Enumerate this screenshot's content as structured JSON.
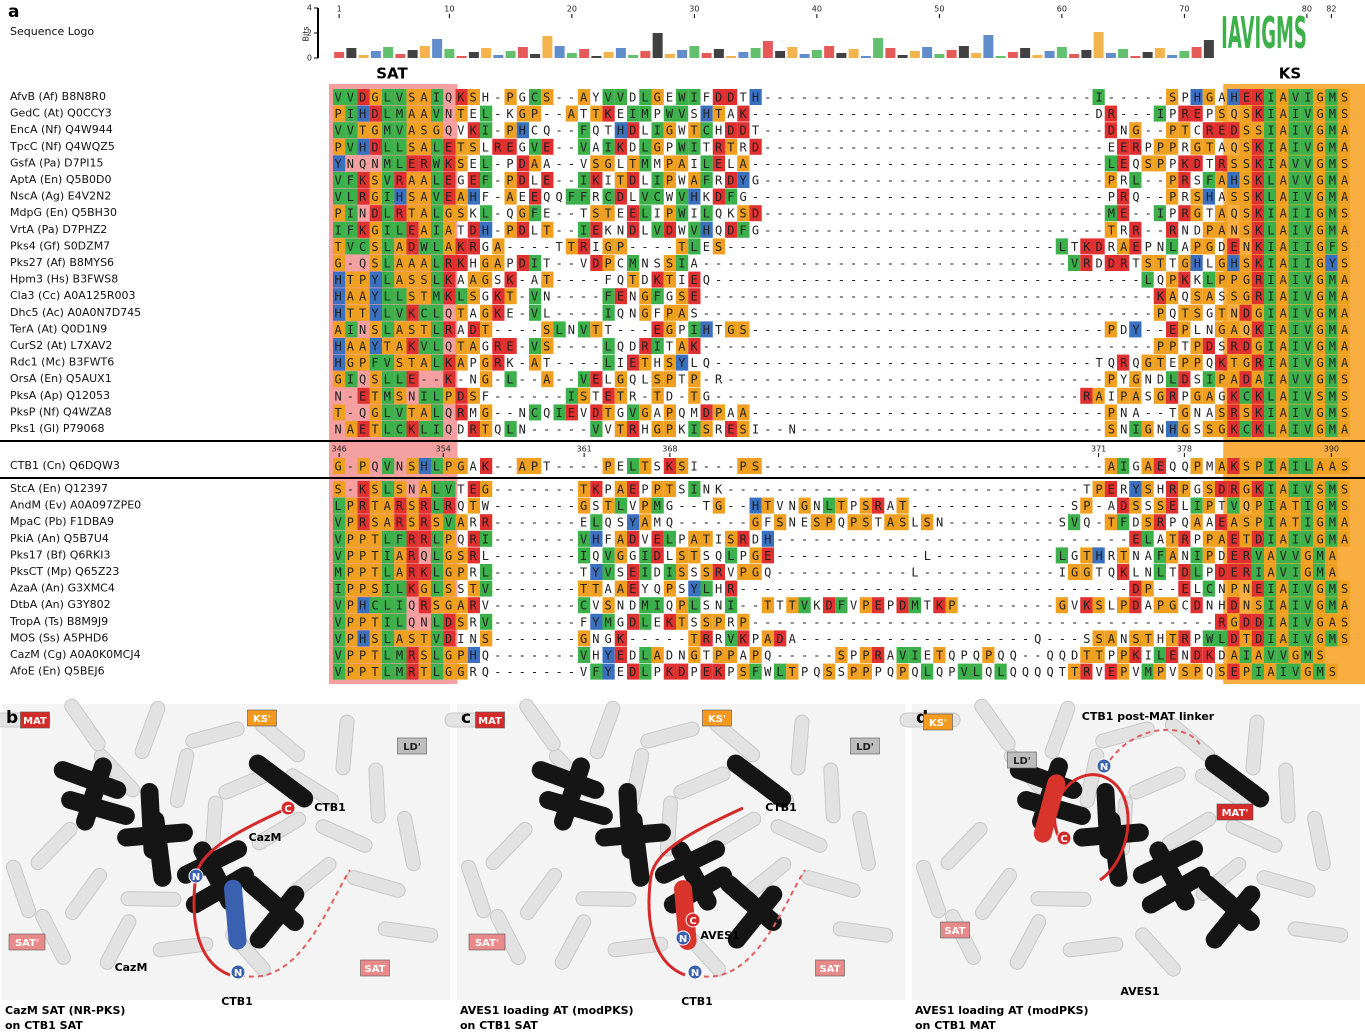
{
  "panel_a": {
    "label": "a",
    "logo_title": "Sequence Logo",
    "logo_axis_label": "Bits",
    "logo_yticks": [
      4,
      2,
      0
    ],
    "logo_consensus": "IAVIGMS",
    "position_ticks": [
      1,
      10,
      20,
      30,
      40,
      50,
      60,
      70,
      80,
      82
    ],
    "domains": [
      "SAT",
      "KS"
    ],
    "groups": [
      {
        "rows": [
          {
            "name": "AfvB (Af) B8N8R0",
            "sequence": "VVDGLVSAIQKSH-PGCS--AYVVDLGEWIFDDTH---------------------------I-----SPHGAHEKIAVIGMS"
          },
          {
            "name": "GedC (At) Q0CCY3",
            "sequence": "PIHDLMAAVNTEL-KGP--ATTKEIMPWVSHTAK----------------------------DR---IPREPSQSKIAIVGMS"
          },
          {
            "name": "EncA (Nf) Q4W944",
            "sequence": "VVTGMVASGQVKI-PHCQ--FQTHDLIGWTCHDDT----------------------------DNG--PTCREDSSIAIVGMA"
          },
          {
            "name": "TpcC (Nf) Q4WQZ5",
            "sequence": "PVHDLLSALETSLREGVE--VAIKDLGPWITRTRD----------------------------EERPPPRGTAQSKIAIVGMA"
          },
          {
            "name": "GsfA (Pa) D7PI15",
            "sequence": "YNQNMLERWKSEL-PDAA--VSGLTMMPAILELA-----------------------------LEQSPPKDTRSSKIAVVGMS"
          },
          {
            "name": "AptA (En) Q5B0D0",
            "sequence": "VFKSVRAALEGEF-PDLE--IKITDLIPWAFRDYG----------------------------PRL--PRSFAHSKLAVVGMA"
          },
          {
            "name": "NscA (Ag) E4V2N2",
            "sequence": "VLRGIHSAVEAHF-AEEQQFFRCDLVCWVHKDFG-----------------------------PRQ--PRSHASSKLAIVGMA"
          },
          {
            "name": "MdpG (En) Q5BH30",
            "sequence": "PINDLRTALGSKL-QGFE--TSTEELIPWILQKSD----------------------------ME--IPRGTAQSKIAIIGMS"
          },
          {
            "name": "VrtA (Pa) D7PHZ2",
            "sequence": "IFKGILEAIATDH-PDLT--IEKNDLVDWVHQDFG----------------------------TRR--RNDPANSKLAIVGMA"
          },
          {
            "name": "Pks4 (Gf) S0DZM7",
            "sequence": "TVCSLADWLAKRGA----TTRIGP----TLES---------------------------LTKDRAEPNLAPGDENKIAIIGFS"
          },
          {
            "name": "Pks27 (Af) B8MYS6",
            "sequence": "G-QSLAAALRKHGAPDIT--VDPCMNSSIA------------------------------VRDDRTSTTGHLGHSKIAIIGYS"
          },
          {
            "name": "Hpm3 (Hs) B3FWS8",
            "sequence": "HTPYLASSLKAAGSK-AT----FQTDKTIEQ-----------------------------------LQPKKLPPGRIAIVGMA"
          },
          {
            "name": "Cla3 (Cc) A0A125R003",
            "sequence": "HAAYLLSTMKLSGKT-VN----FENGFGSE-------------------------------------KAQSASSGRIAIVGMA"
          },
          {
            "name": "Dhc5 (Ac) A0A0N7D745",
            "sequence": "HTTYLVKCLQTAGKE-VL----IQNGFPAS-------------------------------------PQTSGTNDGIAIVGMA"
          },
          {
            "name": "TerA (At) Q0D1N9",
            "sequence": "AINSLASTLRADT----SLNVTT---EGPIHTGS-----------------------------PDY--EPLNGAQKIAIVGMA"
          },
          {
            "name": "CurS2 (At) L7XAV2",
            "sequence": "HAAYTAKVLQTAGRE-VS----LQDRITAK-------------------------------------PPTPDSRDGIAIVGMA"
          },
          {
            "name": "Rdc1 (Mc) B3FWT6",
            "sequence": "HGPFVSTALKAPGRK-AT----LIETHSYLQ-------------------------------TQRQGTEPPQKTGRIAIVGMA"
          },
          {
            "name": "OrsA (En) Q5AUX1",
            "sequence": "GIQSLLE--K-NG-L--A--VELGQLSPTP-R-------------------------------PYGNDLDSIPADAIAVVGMS"
          },
          {
            "name": "PksA (Ap) Q12053",
            "sequence": "N-ETMSNILPDSF------ISTETR-TD-TG------------------------------RAIPASGRPGAGKCKLAIVSMS"
          },
          {
            "name": "PksP (Nf) Q4WZA8",
            "sequence": "T-QGLVTALQRMG--NCQIEVDTGVGAPQMDPAA-----------------------------PNA--TGNASRSKIAIVGMS"
          },
          {
            "name": "Pks1 (Gl) P79068",
            "sequence": "NAETLCKLIQDRTQLN-----VVTRHGPKISRESI--N-------------------------SNIGNHGSSGKCKLAIVGMA"
          }
        ]
      },
      {
        "rows": [
          {
            "name": "CTB1 (Cn) Q6DQW3",
            "sequence": "G-PQVNSHLPGAK--APT----PELTSKSI---PS----------------------------AIGAEQQPMAKSPIAILAAS"
          }
        ],
        "position_ticks": [
          346,
          354,
          361,
          368,
          371,
          378,
          390
        ]
      },
      {
        "rows": [
          {
            "name": "StcA (En) Q12397",
            "sequence": "S-KSLSNALVTEG-------TKPAEPPTSINK-----------------------------TPERYSHRPGSDRGKIAIVSMS"
          },
          {
            "name": "AndM (Ev) A0A097ZPE0",
            "sequence": "LPRTARSRLRQTW-------GSTLVPMG--TG--HTVNGNLTPSRAT-------------SP-ADSSSELIPTVQPIATIGMS"
          },
          {
            "name": "MpaC (Pb) F1DBA9",
            "sequence": "VPRSARSRSVARR-------ELQSYAMQ------GFSNESPQPSTASLSN---------SVQ-TFDSRPQAAEASPIATIGMA"
          },
          {
            "name": "PkiA (An) Q5B7U4",
            "sequence": "VPPTLFRRLPQRI-------VHFADVELPATISRDH-----------------------------ELATRPPAETDIAIVGMA"
          },
          {
            "name": "Pks17 (Bf) Q6RKI3",
            "sequence": "VPPTIARQLGSRL-------IQVGGIDLSTSQLPGE------------L----------LGTHRTNAFANIPDERVAVVGMA"
          },
          {
            "name": "PksCT (Mp) Q65Z23",
            "sequence": "MPPTLARKLGPRL-------TYVSEIDISSSRVPGQ-----------L-----------IGGTQKLNLTDLPDERIAVIGMA"
          },
          {
            "name": "AzaA (An) G3XMC4",
            "sequence": "IPPSILKGLSSTV-------TTAAEYQPSYLHR--------------------------------DP--ELCNPNEIAIVGMS"
          },
          {
            "name": "DtbA (An) G3Y802",
            "sequence": "VPHCLIQRSGARV-------CVSNDMIQPLSNI--TTTVKDFVPEPDMTKP--------GVKSLPDAPGCDNHDNSIAIVGMA"
          },
          {
            "name": "TropA (Ts) B8M9J9",
            "sequence": "VPPTILQNLDSRV-------FYMGDLEKTSSPRP--------------------------------------RGDDIAIVGAS"
          },
          {
            "name": "MOS (Ss) A5PHD6",
            "sequence": "VPHSLASTVDINS-------GNGK-----TRRVKPADA-------------------Q---SSANSTHTRPWLDTDIAIVGMS"
          },
          {
            "name": "CazM (Cg) A0A0K0MCJ4",
            "sequence": "VPPTLMRSLGPHQ-------VHYEDLADNGTPPAPQ-----SPPRAVIETQPQPQQ--QQDTTPPKILENDKDAIAVVGMS"
          },
          {
            "name": "AfoE (En) Q5BEJ6",
            "sequence": "VPPTLMRTLGGRQ-------VFYEDLPKDPEKPSFWLTPQSSPPPQPQLQPVLQLQQQQTTRVEPVMPVSPQSEPIAIVGMS"
          }
        ]
      }
    ]
  },
  "panel_b": {
    "label": "b",
    "tags": [
      "MAT",
      "KS'",
      "LD'",
      "CTB1",
      "C",
      "CazM",
      "N",
      "SAT'",
      "CazM",
      "N",
      "SAT",
      "CTB1"
    ],
    "caption": [
      "CazM SAT (NR-PKS)",
      "on CTB1 SAT"
    ]
  },
  "panel_c": {
    "label": "c",
    "tags": [
      "MAT",
      "KS'",
      "LD'",
      "CTB1",
      "SAT'",
      "C",
      "N",
      "AVES1",
      "N",
      "SAT",
      "CTB1"
    ],
    "caption": [
      "AVES1 loading AT (modPKS)",
      "on CTB1 SAT"
    ]
  },
  "panel_d": {
    "label": "d",
    "tags": [
      "CTB1 post-MAT linker",
      "C",
      "N",
      "KS'",
      "LD'",
      "MAT'",
      "SAT",
      "AVES1"
    ],
    "caption": [
      "AVES1 loading AT (modPKS)",
      "on CTB1 MAT"
    ]
  }
}
